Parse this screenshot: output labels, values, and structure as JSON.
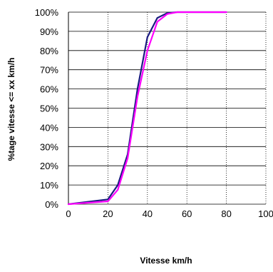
{
  "chart_data": {
    "type": "line",
    "title": "",
    "xlabel": "Vitesse km/h",
    "ylabel": "%tage vitesse <= xx km/h",
    "xlim": [
      0,
      100
    ],
    "ylim": [
      0,
      1
    ],
    "x_ticks": [
      0,
      20,
      40,
      60,
      80,
      100
    ],
    "x_tick_labels": [
      "0",
      "20",
      "40",
      "60",
      "80",
      "100"
    ],
    "y_ticks": [
      0,
      0.1,
      0.2,
      0.3,
      0.4,
      0.5,
      0.6,
      0.7,
      0.8,
      0.9,
      1.0
    ],
    "y_tick_labels": [
      "0%",
      "10%",
      "20%",
      "30%",
      "40%",
      "50%",
      "60%",
      "70%",
      "80%",
      "90%",
      "100%"
    ],
    "grid": {
      "vertical": true,
      "vertical_style": "dotted",
      "horizontal": true,
      "horizontal_style": "solid"
    },
    "legend": "none",
    "series": [
      {
        "color": "#1a1a80",
        "x": [
          0,
          20,
          25,
          30,
          35,
          40,
          45,
          50,
          55,
          60,
          65,
          70,
          75,
          80
        ],
        "y": [
          0.0,
          0.025,
          0.1,
          0.26,
          0.6,
          0.87,
          0.97,
          0.995,
          1.0,
          1.0,
          1.0,
          1.0,
          1.0,
          1.0
        ]
      },
      {
        "color": "#ff00ff",
        "x": [
          0,
          20,
          25,
          30,
          35,
          40,
          45,
          50,
          55,
          60,
          65,
          70,
          75,
          80
        ],
        "y": [
          0.0,
          0.015,
          0.075,
          0.24,
          0.56,
          0.8,
          0.95,
          0.99,
          1.0,
          1.0,
          1.0,
          1.0,
          1.0,
          1.0
        ]
      }
    ]
  }
}
